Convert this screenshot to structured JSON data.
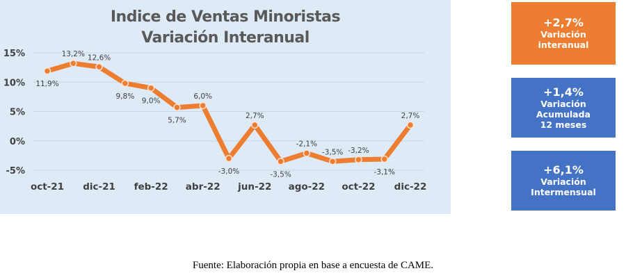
{
  "chart_data": {
    "type": "line",
    "title": "Indice de Ventas Minoristas",
    "subtitle": "Variación Interanual",
    "xlabel": "",
    "ylabel": "",
    "x": [
      "oct-21",
      "nov-21",
      "dic-21",
      "ene-22",
      "feb-22",
      "mar-22",
      "abr-22",
      "may-22",
      "jun-22",
      "jul-22",
      "ago-22",
      "sep-22",
      "oct-22",
      "nov-22",
      "dic-22"
    ],
    "x_tick_labels": [
      "oct-21",
      "dic-21",
      "feb-22",
      "abr-22",
      "jun-22",
      "ago-22",
      "oct-22",
      "dic-22"
    ],
    "y_tick_labels": [
      "15%",
      "10%",
      "5%",
      "0%",
      "-5%"
    ],
    "y_ticks": [
      15,
      10,
      5,
      0,
      -5
    ],
    "ylim": [
      -5,
      15
    ],
    "grid": true,
    "series": [
      {
        "name": "Variación Interanual",
        "color": "#ed7d31",
        "values": [
          11.9,
          13.2,
          12.6,
          9.8,
          9.0,
          5.7,
          6.0,
          -3.0,
          2.7,
          -3.5,
          -2.1,
          -3.5,
          -3.2,
          -3.1,
          2.7
        ],
        "data_labels": [
          "11,9%",
          "13,2%",
          "12,6%",
          "9,8%",
          "9,0%",
          "5,7%",
          "6,0%",
          "-3,0%",
          "2,7%",
          "-3,5%",
          "-2,1%",
          "-3,5%",
          "-3,2%",
          "-3,1%",
          "2,7%"
        ],
        "label_positions": [
          "below",
          "above",
          "above",
          "below",
          "below",
          "below",
          "above",
          "below",
          "above",
          "below",
          "above",
          "above",
          "above",
          "below",
          "above"
        ]
      }
    ]
  },
  "kpis": [
    {
      "value": "+2,7%",
      "lines": [
        "Variación",
        "interanual"
      ],
      "color": "#ed7d31"
    },
    {
      "value": "+1,4%",
      "lines": [
        "Variación",
        "Acumulada",
        "12 meses"
      ],
      "color": "#4472c4"
    },
    {
      "value": "+6,1%",
      "lines": [
        "Variación",
        "Intermensual"
      ],
      "color": "#4472c4"
    }
  ],
  "footer": "Fuente: Elaboración propia en base a encuesta de CAME."
}
